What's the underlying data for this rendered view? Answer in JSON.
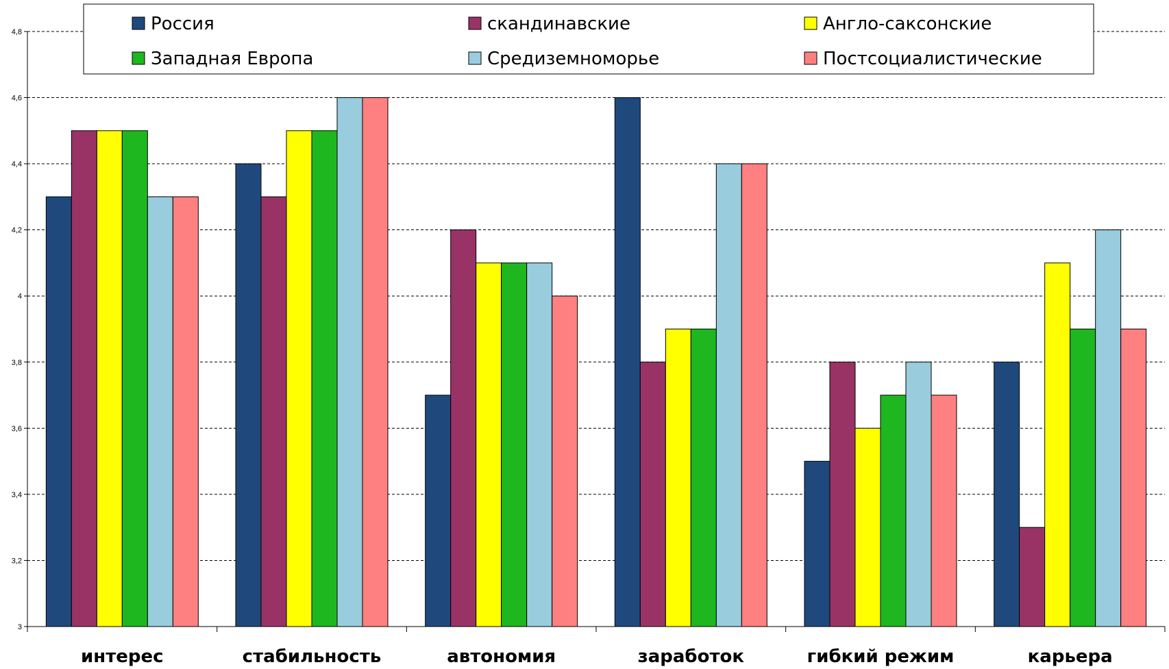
{
  "chart_data": {
    "type": "bar",
    "title": "",
    "xlabel": "",
    "ylabel": "",
    "ylim": [
      3,
      4.8
    ],
    "yticks": [
      "3",
      "3,2",
      "3,4",
      "3,6",
      "3,8",
      "4",
      "4,2",
      "4,4",
      "4,6",
      "4,8"
    ],
    "grid": true,
    "legend_position": "top",
    "categories": [
      "интерес",
      "стабильность",
      "автономия",
      "заработок",
      "гибкий режим",
      "карьера"
    ],
    "series": [
      {
        "name": "Россия",
        "color": "#1F497D",
        "values": [
          4.3,
          4.4,
          3.7,
          4.6,
          3.5,
          3.8
        ]
      },
      {
        "name": "скандинавские",
        "color": "#993366",
        "values": [
          4.5,
          4.3,
          4.2,
          3.8,
          3.8,
          3.3
        ]
      },
      {
        "name": "Англо-саксонские",
        "color": "#FFFF00",
        "values": [
          4.5,
          4.5,
          4.1,
          3.9,
          3.6,
          4.1
        ]
      },
      {
        "name": "Западная Европа",
        "color": "#1FB71F",
        "values": [
          4.5,
          4.5,
          4.1,
          3.9,
          3.7,
          3.9
        ]
      },
      {
        "name": "Средиземноморье",
        "color": "#99CCDD",
        "values": [
          4.3,
          4.6,
          4.1,
          4.4,
          3.8,
          4.2
        ]
      },
      {
        "name": "Постсоциалистические",
        "color": "#FF8080",
        "values": [
          4.3,
          4.6,
          4.0,
          4.4,
          3.7,
          3.9
        ]
      }
    ]
  }
}
